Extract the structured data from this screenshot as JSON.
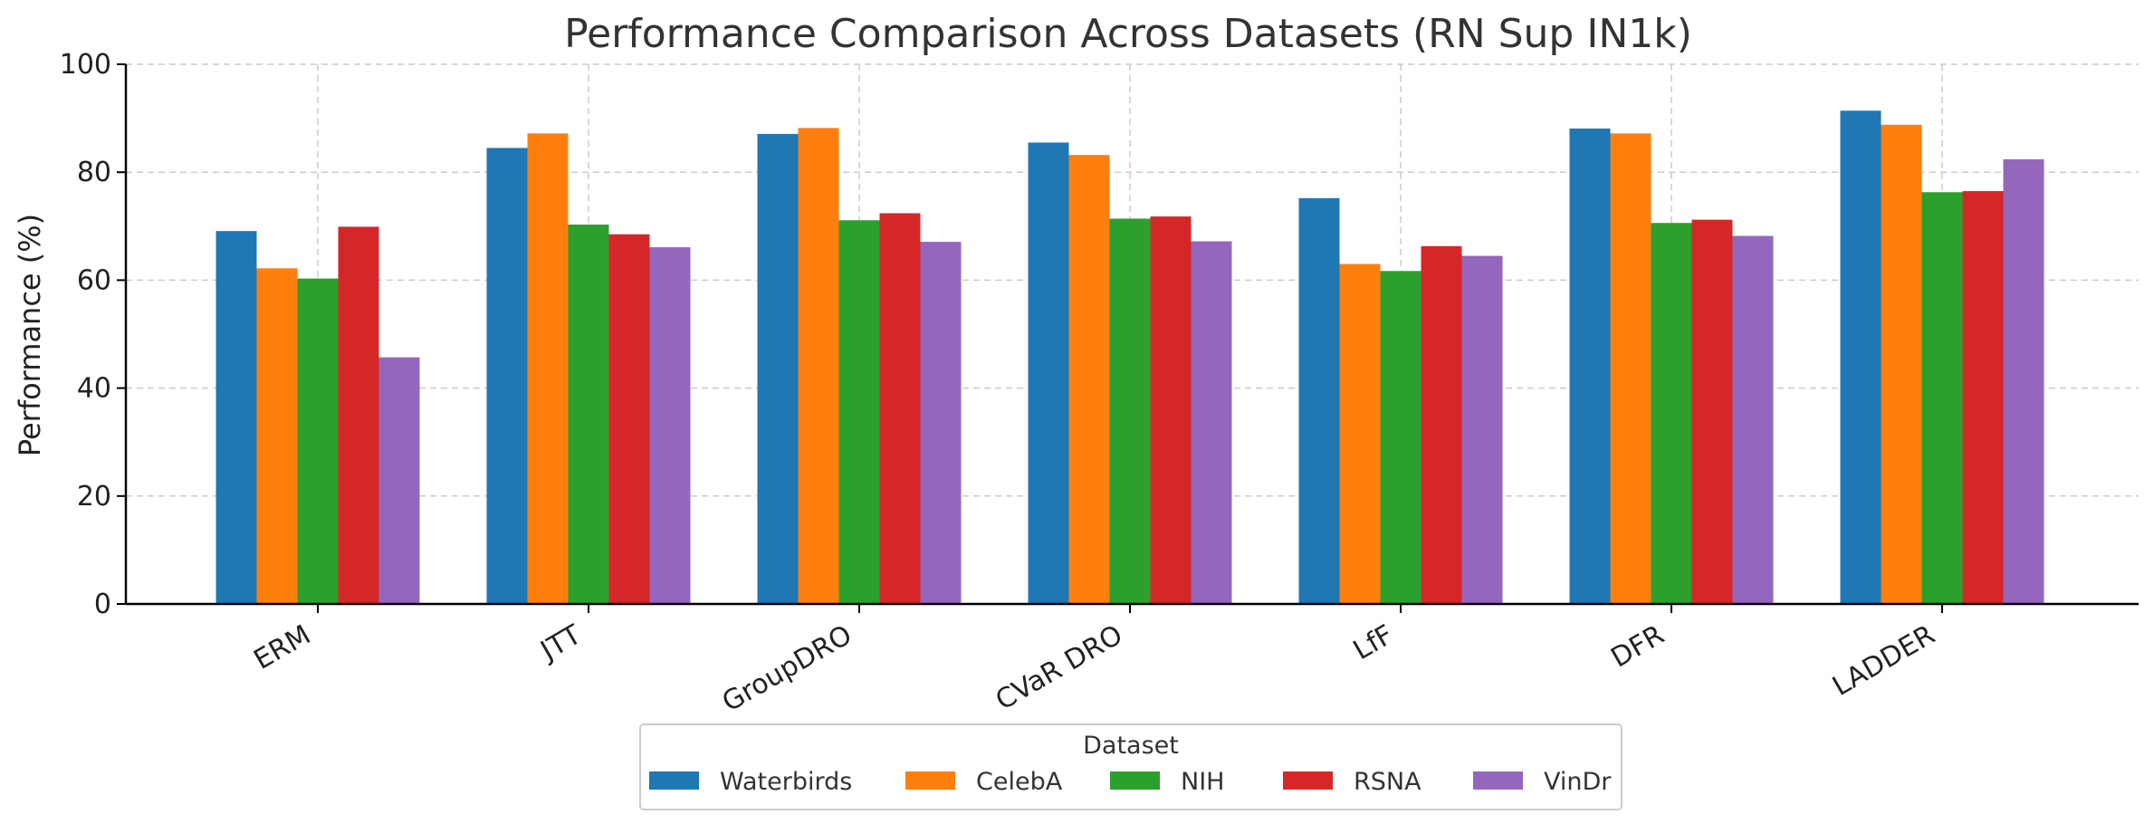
{
  "chart_data": {
    "type": "bar",
    "title": "Performance Comparison Across Datasets (RN Sup IN1k)",
    "xlabel": "",
    "ylabel": "Performance (%)",
    "ylim": [
      0,
      100
    ],
    "yticks": [
      0,
      20,
      40,
      60,
      80,
      100
    ],
    "grid": true,
    "categories": [
      "ERM",
      "JTT",
      "GroupDRO",
      "CVaR DRO",
      "LfF",
      "DFR",
      "LADDER"
    ],
    "series": [
      {
        "name": "Waterbirds",
        "color": "#1f77b4",
        "values": [
          69.1,
          84.5,
          87.1,
          85.5,
          75.2,
          88.1,
          91.4
        ]
      },
      {
        "name": "CelebA",
        "color": "#ff7f0e",
        "values": [
          62.2,
          87.2,
          88.2,
          83.2,
          63.0,
          87.2,
          88.8
        ]
      },
      {
        "name": "NIH",
        "color": "#2ca02c",
        "values": [
          60.3,
          70.3,
          71.1,
          71.4,
          61.7,
          70.6,
          76.3
        ]
      },
      {
        "name": "RSNA",
        "color": "#d62728",
        "values": [
          69.9,
          68.5,
          72.4,
          71.8,
          66.3,
          71.2,
          76.5
        ]
      },
      {
        "name": "VinDr",
        "color": "#9467bd",
        "values": [
          45.7,
          66.1,
          67.1,
          67.2,
          64.5,
          68.2,
          82.4
        ]
      }
    ],
    "legend": {
      "title": "Dataset",
      "placement": "bottom-center"
    }
  }
}
